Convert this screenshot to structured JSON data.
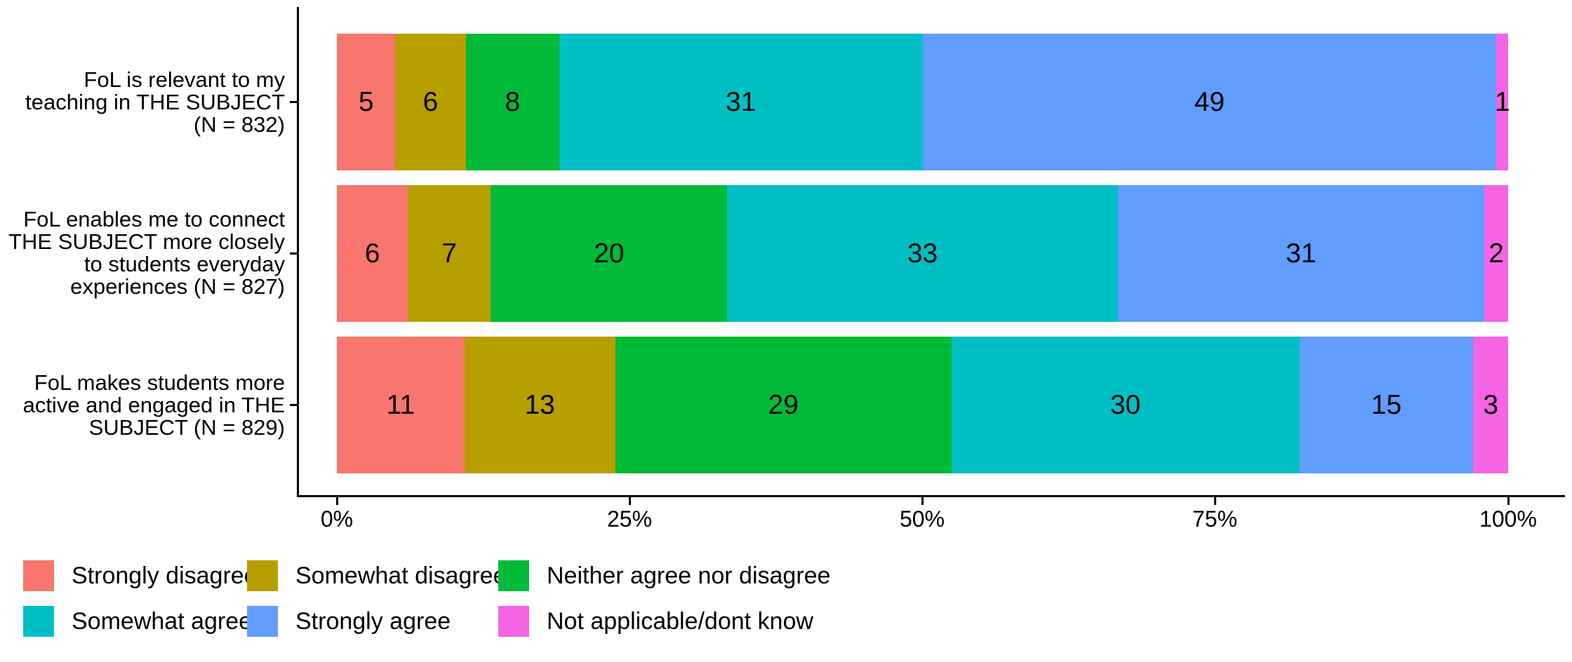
{
  "chart_data": {
    "type": "bar",
    "subtype": "stacked-percentage",
    "orientation": "horizontal",
    "title": "",
    "xlabel": "",
    "ylabel": "",
    "xlim": [
      0,
      100
    ],
    "x_ticks": [
      "0%",
      "25%",
      "50%",
      "75%",
      "100%"
    ],
    "grid": false,
    "legend_position": "bottom",
    "value_unit": "percent",
    "categories": [
      "FoL is relevant to my\nteaching in THE SUBJECT\n(N = 832)",
      "FoL enables me to connect\nTHE SUBJECT more closely\nto students everyday\nexperiences (N = 827)",
      "FoL makes students more\nactive and engaged in THE\nSUBJECT (N = 829)"
    ],
    "series": [
      {
        "name": "Strongly disagree",
        "color": "#F8766D",
        "values": [
          5,
          6,
          11
        ]
      },
      {
        "name": "Somewhat disagree",
        "color": "#B79F00",
        "values": [
          6,
          7,
          13
        ]
      },
      {
        "name": "Neither agree nor disagree",
        "color": "#00BA38",
        "values": [
          8,
          20,
          29
        ]
      },
      {
        "name": "Somewhat agree",
        "color": "#00BFC4",
        "values": [
          31,
          33,
          30
        ]
      },
      {
        "name": "Strongly agree",
        "color": "#619CFF",
        "values": [
          49,
          31,
          15
        ]
      },
      {
        "name": "Not applicable/dont know",
        "color": "#F564E3",
        "values": [
          1,
          2,
          3
        ]
      }
    ]
  }
}
